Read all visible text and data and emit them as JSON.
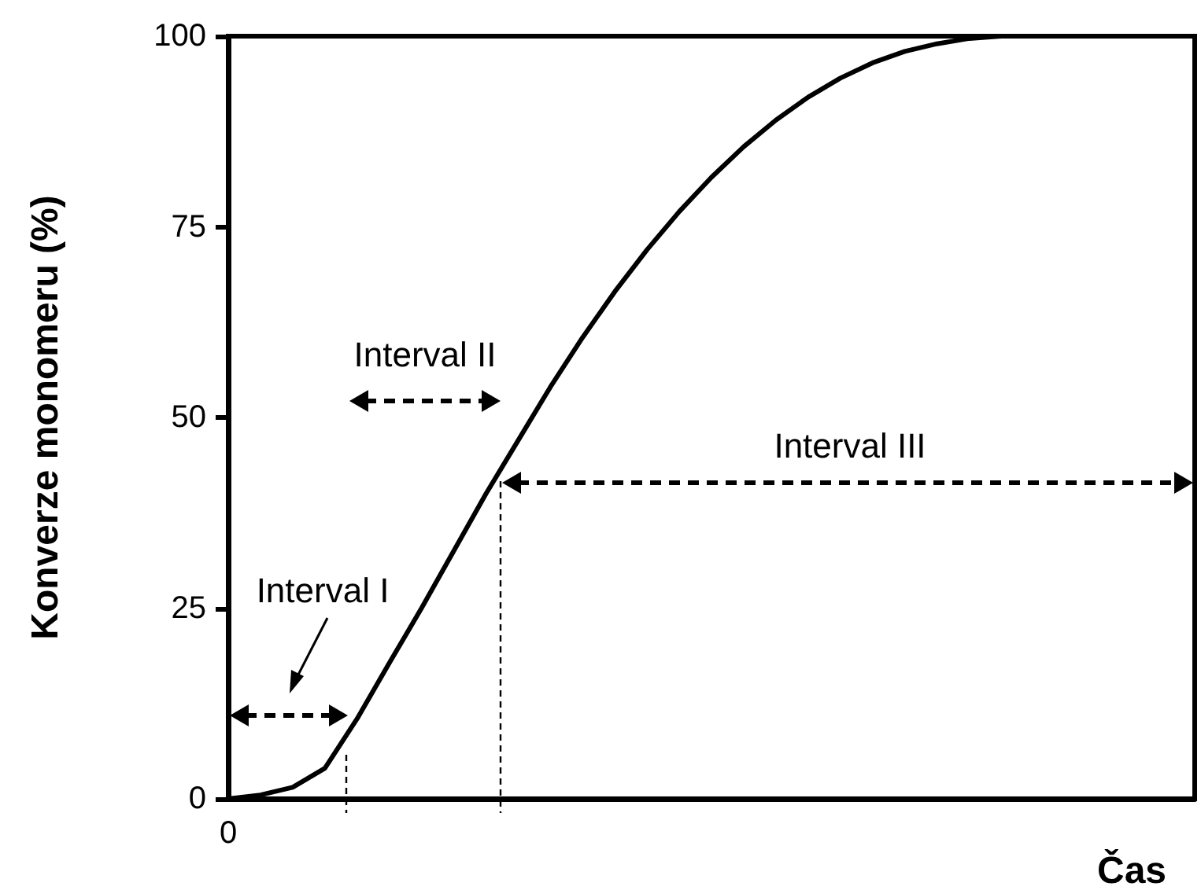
{
  "chart_data": {
    "type": "line",
    "xlabel": "Čas",
    "ylabel": "Konverze monomeru (%)",
    "categories": [
      "0",
      null,
      null,
      null,
      null,
      null,
      null,
      null,
      null,
      null,
      null,
      null,
      null,
      null,
      null,
      null,
      null,
      null,
      null,
      null,
      null,
      null,
      null,
      null,
      null,
      null,
      null,
      null,
      null,
      null,
      null
    ],
    "series": [
      {
        "color": "#000000",
        "values": [
          0,
          0.5,
          1.5,
          4,
          10.5,
          17.8,
          25,
          32.5,
          40,
          47,
          54,
          60.5,
          66.5,
          72,
          77,
          81.5,
          85.5,
          89,
          92,
          94.5,
          96.5,
          98,
          99,
          99.7,
          100,
          100,
          100,
          100,
          100,
          100,
          100
        ]
      }
    ],
    "ylim": [
      0,
      100
    ],
    "yticks": [
      0,
      25,
      50,
      75,
      100
    ],
    "grid": false,
    "marker": "none",
    "line_style": "solid",
    "annotations": [
      "Interval I",
      "Interval II",
      "Interval III"
    ]
  }
}
